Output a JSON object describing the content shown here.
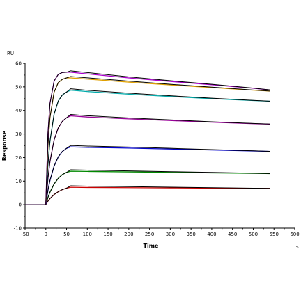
{
  "chart_data": {
    "type": "line",
    "title": "",
    "xlabel": "Time",
    "ylabel": "Response",
    "x_unit": "s",
    "y_unit": "RU",
    "xlim": [
      -50,
      600
    ],
    "ylim": [
      -10,
      60
    ],
    "x_ticks": [
      -50,
      0,
      50,
      100,
      150,
      200,
      250,
      300,
      350,
      400,
      450,
      500,
      550,
      600
    ],
    "y_ticks": [
      -10,
      0,
      10,
      20,
      30,
      40,
      50,
      60
    ],
    "grid": false,
    "legend": "none",
    "series": [
      {
        "color": "#cc0000",
        "x": [
          -50,
          0,
          5,
          10,
          20,
          30,
          40,
          50,
          60,
          100,
          200,
          300,
          400,
          500,
          540
        ],
        "y": [
          0,
          0,
          1.5,
          2.6,
          4.3,
          5.5,
          6.4,
          7,
          7.4,
          7.3,
          7.2,
          7.1,
          7,
          6.9,
          6.9
        ]
      },
      {
        "color": "#008800",
        "x": [
          -50,
          0,
          5,
          10,
          20,
          30,
          40,
          50,
          60,
          100,
          200,
          300,
          400,
          500,
          540
        ],
        "y": [
          0,
          0,
          3,
          5.3,
          8.8,
          11.2,
          12.8,
          13.7,
          14.2,
          14.1,
          13.9,
          13.7,
          13.5,
          13.3,
          13.2
        ]
      },
      {
        "color": "#0000cc",
        "x": [
          -50,
          0,
          5,
          10,
          20,
          30,
          40,
          50,
          60,
          100,
          200,
          300,
          400,
          500,
          540
        ],
        "y": [
          0,
          0,
          6,
          10.3,
          16.4,
          20.3,
          22.6,
          23.9,
          24.5,
          24.3,
          24,
          23.6,
          23.2,
          22.8,
          22.6
        ]
      },
      {
        "color": "#990099",
        "x": [
          -50,
          0,
          5,
          10,
          20,
          30,
          40,
          50,
          60,
          100,
          200,
          300,
          400,
          500,
          540
        ],
        "y": [
          0,
          0,
          11,
          18.3,
          27.5,
          32.6,
          35.4,
          36.9,
          37.7,
          37.2,
          36.4,
          35.7,
          35,
          34.4,
          34.2
        ]
      },
      {
        "color": "#00aaaa",
        "x": [
          -50,
          0,
          5,
          10,
          20,
          30,
          40,
          50,
          60,
          100,
          200,
          300,
          400,
          500,
          540
        ],
        "y": [
          0,
          0,
          17,
          27,
          38.5,
          44,
          46.6,
          47.8,
          48.6,
          48,
          46.9,
          45.9,
          45,
          44.2,
          43.9
        ]
      },
      {
        "color": "#e0a000",
        "x": [
          -50,
          0,
          5,
          10,
          20,
          30,
          40,
          50,
          60,
          100,
          200,
          300,
          400,
          500,
          540
        ],
        "y": [
          0,
          0,
          25,
          37,
          47.8,
          51.8,
          53.2,
          53.8,
          53.8,
          53.3,
          52,
          50.8,
          49.7,
          48.6,
          48.2
        ]
      },
      {
        "color": "#aa00cc",
        "x": [
          -50,
          0,
          5,
          10,
          20,
          30,
          40,
          50,
          60,
          100,
          200,
          300,
          400,
          500,
          540
        ],
        "y": [
          0,
          0,
          30,
          43,
          52.5,
          55.3,
          56.1,
          56.2,
          56.2,
          55.5,
          53.8,
          52.3,
          50.9,
          49.4,
          48.7
        ]
      }
    ]
  }
}
